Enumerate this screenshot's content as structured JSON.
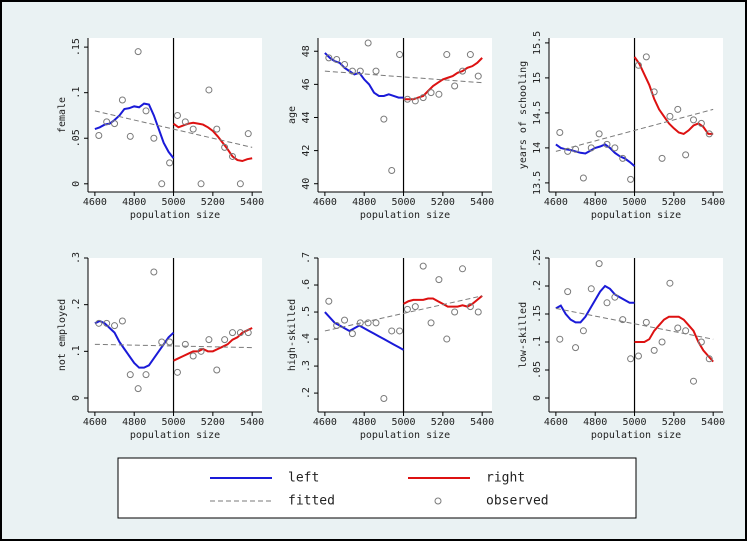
{
  "chart_data": [
    {
      "type": "line",
      "ylabel": "female",
      "xlabel": "population size",
      "xlim": [
        4565,
        5450
      ],
      "ylim": [
        -0.009,
        0.16
      ],
      "xticks": [
        4600,
        4800,
        5000,
        5200,
        5400
      ],
      "yticks": [
        0,
        {
          "value": 0.05,
          "label": ".05"
        },
        {
          "value": 0.1,
          "label": ".1"
        },
        {
          "value": 0.15,
          "label": ".15"
        }
      ],
      "cutoff": 5000,
      "series": [
        {
          "name": "left",
          "color": "#1a1ad8",
          "style": "solid",
          "x": [
            4600,
            4625,
            4650,
            4675,
            4700,
            4725,
            4750,
            4775,
            4800,
            4825,
            4850,
            4875,
            4900,
            4925,
            4950,
            4975,
            5000
          ],
          "values": [
            0.06,
            0.062,
            0.065,
            0.066,
            0.07,
            0.075,
            0.082,
            0.083,
            0.085,
            0.084,
            0.088,
            0.087,
            0.075,
            0.06,
            0.045,
            0.035,
            0.028
          ]
        },
        {
          "name": "right",
          "color": "#dd1111",
          "style": "solid",
          "x": [
            5000,
            5025,
            5050,
            5075,
            5100,
            5125,
            5150,
            5175,
            5200,
            5225,
            5250,
            5275,
            5300,
            5325,
            5350,
            5375,
            5400
          ],
          "values": [
            0.066,
            0.062,
            0.064,
            0.066,
            0.067,
            0.066,
            0.065,
            0.062,
            0.058,
            0.052,
            0.045,
            0.038,
            0.03,
            0.026,
            0.025,
            0.027,
            0.028
          ]
        },
        {
          "name": "fitted",
          "color": "#7a7a7a",
          "style": "dashed",
          "x": [
            4600,
            5400
          ],
          "values": [
            0.08,
            0.04
          ]
        },
        {
          "name": "observed",
          "color": "#7a7a7a",
          "style": "marker",
          "x": [
            4620,
            4660,
            4700,
            4740,
            4780,
            4820,
            4860,
            4900,
            4940,
            4980,
            5020,
            5060,
            5100,
            5140,
            5180,
            5220,
            5260,
            5300,
            5340,
            5380
          ],
          "values": [
            0.053,
            0.068,
            0.066,
            0.092,
            0.052,
            0.145,
            0.08,
            0.05,
            0.0,
            0.023,
            0.075,
            0.068,
            0.06,
            0.0,
            0.103,
            0.06,
            0.04,
            0.03,
            0.0,
            0.055
          ]
        }
      ]
    },
    {
      "type": "line",
      "ylabel": "age",
      "xlabel": "population size",
      "xlim": [
        4565,
        5450
      ],
      "ylim": [
        39.5,
        48.8
      ],
      "xticks": [
        4600,
        4800,
        5000,
        5200,
        5400
      ],
      "yticks": [
        40,
        42,
        44,
        46,
        48
      ],
      "cutoff": 5000,
      "series": [
        {
          "name": "left",
          "color": "#1a1ad8",
          "style": "solid",
          "x": [
            4600,
            4625,
            4650,
            4675,
            4700,
            4725,
            4750,
            4775,
            4800,
            4825,
            4850,
            4875,
            4900,
            4925,
            4950,
            4975,
            5000
          ],
          "values": [
            47.9,
            47.6,
            47.4,
            47.3,
            47.0,
            46.8,
            46.6,
            46.7,
            46.3,
            46.0,
            45.5,
            45.3,
            45.3,
            45.4,
            45.3,
            45.2,
            45.2
          ]
        },
        {
          "name": "right",
          "color": "#dd1111",
          "style": "solid",
          "x": [
            5000,
            5025,
            5050,
            5075,
            5100,
            5125,
            5150,
            5175,
            5200,
            5225,
            5250,
            5275,
            5300,
            5325,
            5350,
            5375,
            5400
          ],
          "values": [
            45.1,
            45.1,
            45.1,
            45.2,
            45.3,
            45.6,
            45.9,
            46.1,
            46.3,
            46.4,
            46.5,
            46.7,
            46.8,
            47.0,
            47.1,
            47.3,
            47.6
          ]
        },
        {
          "name": "fitted",
          "color": "#7a7a7a",
          "style": "dashed",
          "x": [
            4600,
            5400
          ],
          "values": [
            46.8,
            46.1
          ]
        },
        {
          "name": "observed",
          "color": "#7a7a7a",
          "style": "marker",
          "x": [
            4620,
            4660,
            4700,
            4740,
            4780,
            4820,
            4860,
            4900,
            4940,
            4980,
            5020,
            5060,
            5100,
            5140,
            5180,
            5220,
            5260,
            5300,
            5340,
            5380
          ],
          "values": [
            47.6,
            47.5,
            47.2,
            46.8,
            46.8,
            48.5,
            46.8,
            43.9,
            40.8,
            47.8,
            45.1,
            45.0,
            45.2,
            45.5,
            45.4,
            47.8,
            45.9,
            46.8,
            47.8,
            46.5
          ]
        }
      ]
    },
    {
      "type": "line",
      "ylabel": "years of schooling",
      "xlabel": "population size",
      "xlim": [
        4565,
        5450
      ],
      "ylim": [
        13.37,
        15.57
      ],
      "xticks": [
        4600,
        4800,
        5000,
        5200,
        5400
      ],
      "yticks": [
        13.5,
        14,
        14.5,
        15,
        15.5
      ],
      "cutoff": 5000,
      "series": [
        {
          "name": "left",
          "color": "#1a1ad8",
          "style": "solid",
          "x": [
            4600,
            4625,
            4650,
            4675,
            4700,
            4725,
            4750,
            4775,
            4800,
            4825,
            4850,
            4875,
            4900,
            4925,
            4950,
            4975,
            5000
          ],
          "values": [
            14.05,
            14.0,
            13.98,
            13.97,
            13.95,
            13.93,
            13.92,
            13.96,
            14.0,
            14.02,
            14.05,
            14.0,
            13.93,
            13.88,
            13.85,
            13.8,
            13.74
          ]
        },
        {
          "name": "right",
          "color": "#dd1111",
          "style": "solid",
          "x": [
            5000,
            5025,
            5050,
            5075,
            5100,
            5125,
            5150,
            5175,
            5200,
            5225,
            5250,
            5275,
            5300,
            5325,
            5350,
            5375,
            5400
          ],
          "values": [
            15.3,
            15.2,
            15.05,
            14.9,
            14.7,
            14.55,
            14.45,
            14.35,
            14.28,
            14.22,
            14.2,
            14.25,
            14.32,
            14.35,
            14.3,
            14.2,
            14.2
          ]
        },
        {
          "name": "fitted",
          "color": "#7a7a7a",
          "style": "dashed",
          "x": [
            4600,
            5400
          ],
          "values": [
            13.95,
            14.55
          ]
        },
        {
          "name": "observed",
          "color": "#7a7a7a",
          "style": "marker",
          "x": [
            4620,
            4660,
            4700,
            4740,
            4780,
            4820,
            4860,
            4900,
            4940,
            4980,
            5020,
            5060,
            5100,
            5140,
            5180,
            5220,
            5260,
            5300,
            5340,
            5380
          ],
          "values": [
            14.22,
            13.95,
            13.98,
            13.57,
            14.0,
            14.2,
            14.05,
            14.0,
            13.85,
            13.55,
            15.18,
            15.3,
            14.8,
            13.85,
            14.45,
            14.55,
            13.9,
            14.4,
            14.35,
            14.2
          ]
        }
      ]
    },
    {
      "type": "line",
      "ylabel": "not employed",
      "xlabel": "population size",
      "xlim": [
        4565,
        5450
      ],
      "ylim": [
        -0.03,
        0.3
      ],
      "xticks": [
        4600,
        4800,
        5000,
        5200,
        5400
      ],
      "yticks": [
        0,
        {
          "value": 0.1,
          "label": ".1"
        },
        {
          "value": 0.2,
          "label": ".2"
        },
        {
          "value": 0.3,
          "label": ".3"
        }
      ],
      "cutoff": 5000,
      "series": [
        {
          "name": "left",
          "color": "#1a1ad8",
          "style": "solid",
          "x": [
            4600,
            4625,
            4650,
            4675,
            4700,
            4725,
            4750,
            4775,
            4800,
            4825,
            4850,
            4875,
            4900,
            4925,
            4950,
            4975,
            5000
          ],
          "values": [
            0.16,
            0.165,
            0.16,
            0.15,
            0.14,
            0.12,
            0.105,
            0.09,
            0.075,
            0.065,
            0.065,
            0.07,
            0.085,
            0.1,
            0.115,
            0.13,
            0.14
          ]
        },
        {
          "name": "right",
          "color": "#dd1111",
          "style": "solid",
          "x": [
            5000,
            5025,
            5050,
            5075,
            5100,
            5125,
            5150,
            5175,
            5200,
            5225,
            5250,
            5275,
            5300,
            5325,
            5350,
            5375,
            5400
          ],
          "values": [
            0.08,
            0.085,
            0.09,
            0.095,
            0.1,
            0.1,
            0.105,
            0.1,
            0.1,
            0.105,
            0.11,
            0.115,
            0.125,
            0.13,
            0.14,
            0.145,
            0.15
          ]
        },
        {
          "name": "fitted",
          "color": "#7a7a7a",
          "style": "dashed",
          "x": [
            4600,
            5400
          ],
          "values": [
            0.115,
            0.108
          ]
        },
        {
          "name": "observed",
          "color": "#7a7a7a",
          "style": "marker",
          "x": [
            4620,
            4660,
            4700,
            4740,
            4780,
            4820,
            4860,
            4900,
            4940,
            4980,
            5020,
            5060,
            5100,
            5140,
            5180,
            5220,
            5260,
            5300,
            5340,
            5380
          ],
          "values": [
            0.16,
            0.16,
            0.155,
            0.165,
            0.05,
            0.02,
            0.05,
            0.27,
            0.12,
            0.12,
            0.055,
            0.115,
            0.09,
            0.1,
            0.125,
            0.06,
            0.125,
            0.14,
            0.14,
            0.14
          ]
        }
      ]
    },
    {
      "type": "line",
      "ylabel": "high-skilled",
      "xlabel": "population size",
      "xlim": [
        4565,
        5450
      ],
      "ylim": [
        0.13,
        0.7
      ],
      "xticks": [
        4600,
        4800,
        5000,
        5200,
        5400
      ],
      "yticks": [
        {
          "value": 0.2,
          "label": ".2"
        },
        {
          "value": 0.3,
          "label": ".3"
        },
        {
          "value": 0.4,
          "label": ".4"
        },
        {
          "value": 0.5,
          "label": ".5"
        },
        {
          "value": 0.6,
          "label": ".6"
        },
        {
          "value": 0.7,
          "label": ".7"
        }
      ],
      "cutoff": 5000,
      "series": [
        {
          "name": "left",
          "color": "#1a1ad8",
          "style": "solid",
          "x": [
            4600,
            4625,
            4650,
            4675,
            4700,
            4725,
            4750,
            4775,
            4800,
            4825,
            4850,
            4875,
            4900,
            4925,
            4950,
            4975,
            5000
          ],
          "values": [
            0.5,
            0.48,
            0.46,
            0.45,
            0.44,
            0.43,
            0.44,
            0.45,
            0.44,
            0.43,
            0.42,
            0.41,
            0.4,
            0.39,
            0.38,
            0.37,
            0.36
          ]
        },
        {
          "name": "right",
          "color": "#dd1111",
          "style": "solid",
          "x": [
            5000,
            5025,
            5050,
            5075,
            5100,
            5125,
            5150,
            5175,
            5200,
            5225,
            5250,
            5275,
            5300,
            5325,
            5350,
            5375,
            5400
          ],
          "values": [
            0.53,
            0.54,
            0.545,
            0.545,
            0.545,
            0.55,
            0.55,
            0.54,
            0.53,
            0.52,
            0.52,
            0.52,
            0.525,
            0.52,
            0.53,
            0.545,
            0.56
          ]
        },
        {
          "name": "fitted",
          "color": "#7a7a7a",
          "style": "dashed",
          "x": [
            4600,
            5400
          ],
          "values": [
            0.43,
            0.56
          ]
        },
        {
          "name": "observed",
          "color": "#7a7a7a",
          "style": "marker",
          "x": [
            4620,
            4660,
            4700,
            4740,
            4780,
            4820,
            4860,
            4900,
            4940,
            4980,
            5020,
            5060,
            5100,
            5140,
            5180,
            5220,
            5260,
            5300,
            5340,
            5380
          ],
          "values": [
            0.54,
            0.45,
            0.47,
            0.42,
            0.46,
            0.46,
            0.46,
            0.18,
            0.43,
            0.43,
            0.51,
            0.52,
            0.67,
            0.46,
            0.62,
            0.4,
            0.5,
            0.66,
            0.52,
            0.5
          ]
        }
      ]
    },
    {
      "type": "line",
      "ylabel": "low-skilled",
      "xlabel": "population size",
      "xlim": [
        4565,
        5450
      ],
      "ylim": [
        -0.025,
        0.25
      ],
      "xticks": [
        4600,
        4800,
        5000,
        5200,
        5400
      ],
      "yticks": [
        0,
        {
          "value": 0.05,
          "label": ".05"
        },
        {
          "value": 0.1,
          "label": ".1"
        },
        {
          "value": 0.15,
          "label": ".15"
        },
        {
          "value": 0.2,
          "label": ".2"
        },
        {
          "value": 0.25,
          "label": ".25"
        }
      ],
      "cutoff": 5000,
      "series": [
        {
          "name": "left",
          "color": "#1a1ad8",
          "style": "solid",
          "x": [
            4600,
            4625,
            4650,
            4675,
            4700,
            4725,
            4750,
            4775,
            4800,
            4825,
            4850,
            4875,
            4900,
            4925,
            4950,
            4975,
            5000
          ],
          "values": [
            0.16,
            0.165,
            0.15,
            0.14,
            0.135,
            0.135,
            0.145,
            0.16,
            0.175,
            0.19,
            0.2,
            0.195,
            0.185,
            0.18,
            0.175,
            0.17,
            0.17
          ]
        },
        {
          "name": "right",
          "color": "#dd1111",
          "style": "solid",
          "x": [
            5000,
            5025,
            5050,
            5075,
            5100,
            5125,
            5150,
            5175,
            5200,
            5225,
            5250,
            5275,
            5300,
            5325,
            5350,
            5375,
            5400
          ],
          "values": [
            0.1,
            0.1,
            0.1,
            0.105,
            0.12,
            0.13,
            0.14,
            0.145,
            0.145,
            0.145,
            0.14,
            0.13,
            0.12,
            0.1,
            0.085,
            0.075,
            0.065
          ]
        },
        {
          "name": "fitted",
          "color": "#7a7a7a",
          "style": "dashed",
          "x": [
            4600,
            5400
          ],
          "values": [
            0.16,
            0.105
          ]
        },
        {
          "name": "observed",
          "color": "#7a7a7a",
          "style": "marker",
          "x": [
            4620,
            4660,
            4700,
            4740,
            4780,
            4820,
            4860,
            4900,
            4940,
            4980,
            5020,
            5060,
            5100,
            5140,
            5180,
            5220,
            5260,
            5300,
            5340,
            5380
          ],
          "values": [
            0.105,
            0.19,
            0.09,
            0.12,
            0.195,
            0.24,
            0.17,
            0.18,
            0.14,
            0.07,
            0.075,
            0.135,
            0.085,
            0.1,
            0.205,
            0.125,
            0.12,
            0.03,
            0.1,
            0.07
          ]
        }
      ]
    }
  ]
}
